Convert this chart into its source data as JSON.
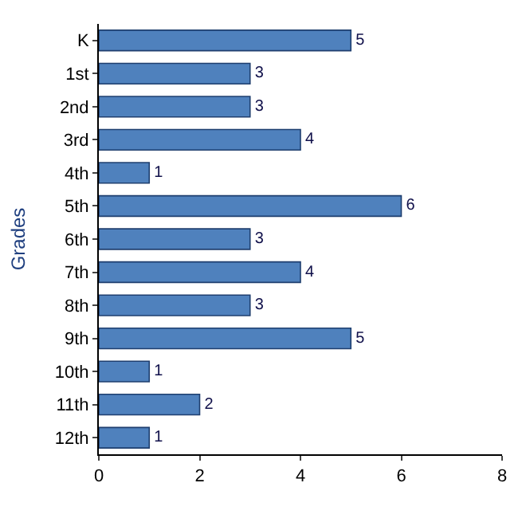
{
  "chart_data": {
    "type": "bar",
    "orientation": "horizontal",
    "ylabel": "Grades",
    "categories": [
      "K",
      "1st",
      "2nd",
      "3rd",
      "4th",
      "5th",
      "6th",
      "7th",
      "8th",
      "9th",
      "10th",
      "11th",
      "12th"
    ],
    "values": [
      5,
      3,
      3,
      4,
      1,
      6,
      3,
      4,
      3,
      5,
      1,
      2,
      1
    ],
    "color": "#4f81bd",
    "xlim": [
      0,
      8
    ],
    "xticks": [
      0,
      2,
      4,
      6,
      8
    ],
    "data_labels": true,
    "legend": false
  }
}
